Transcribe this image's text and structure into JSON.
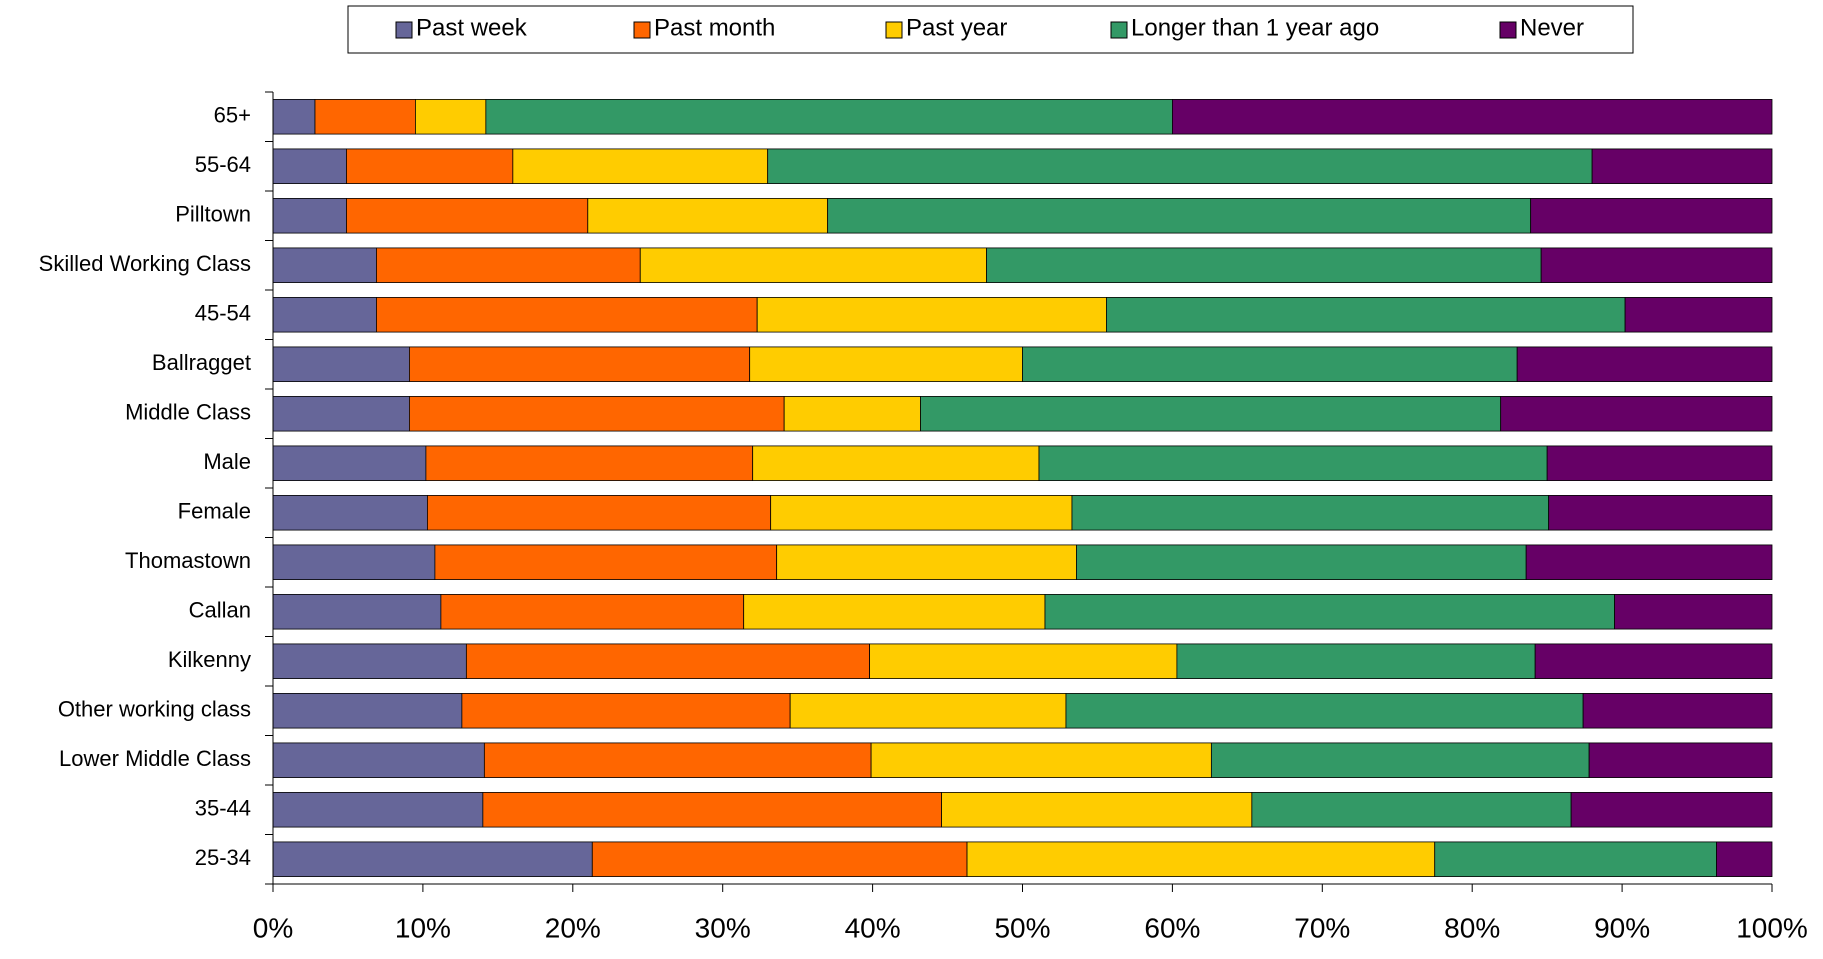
{
  "chart_data": {
    "type": "stacked_barh",
    "categories": [
      "65+",
      "55-64",
      "Pilltown",
      "Skilled Working Class",
      "45-54",
      "Ballragget",
      "Middle Class",
      "Male",
      "Female",
      "Thomastown",
      "Callan",
      "Kilkenny",
      "Other working class",
      "Lower Middle Class",
      "35-44",
      "25-34"
    ],
    "series": [
      {
        "name": "Past week",
        "color": "#666699",
        "values": [
          2.8,
          4.9,
          4.9,
          6.9,
          6.9,
          9.1,
          9.1,
          10.2,
          10.3,
          10.8,
          11.2,
          12.9,
          12.6,
          14.1,
          14,
          21.3
        ]
      },
      {
        "name": "Past month",
        "color": "#ff6600",
        "values": [
          6.7,
          11.1,
          16.1,
          17.6,
          25.4,
          22.7,
          25,
          21.8,
          22.9,
          22.8,
          20.2,
          26.9,
          21.9,
          25.8,
          30.6,
          25
        ]
      },
      {
        "name": "Past year",
        "color": "#ffcc00",
        "values": [
          4.7,
          17,
          16,
          23.1,
          23.3,
          18.2,
          9.1,
          19.1,
          20.1,
          20,
          20.1,
          20.5,
          18.4,
          22.7,
          20.7,
          31.2
        ]
      },
      {
        "name": "Longer than 1 year ago",
        "color": "#339966",
        "values": [
          45.8,
          55,
          46.9,
          37,
          34.6,
          33,
          38.7,
          33.9,
          31.8,
          30,
          38,
          23.9,
          34.5,
          25.2,
          21.3,
          18.8
        ]
      },
      {
        "name": "Never",
        "color": "#660066",
        "values": [
          40,
          12,
          16.1,
          15.4,
          9.8,
          17,
          18.1,
          15,
          14.9,
          16.4,
          10.5,
          15.8,
          12.6,
          12.2,
          13.4,
          3.7
        ]
      }
    ],
    "xlim": [
      0,
      100
    ],
    "xticks": [
      {
        "value": 0,
        "label": "0%"
      },
      {
        "value": 10,
        "label": "10%"
      },
      {
        "value": 20,
        "label": "20%"
      },
      {
        "value": 30,
        "label": "30%"
      },
      {
        "value": 40,
        "label": "40%"
      },
      {
        "value": 50,
        "label": "50%"
      },
      {
        "value": 60,
        "label": "60%"
      },
      {
        "value": 70,
        "label": "70%"
      },
      {
        "value": 80,
        "label": "80%"
      },
      {
        "value": 90,
        "label": "90%"
      },
      {
        "value": 100,
        "label": "100%"
      }
    ],
    "legend": "top"
  }
}
